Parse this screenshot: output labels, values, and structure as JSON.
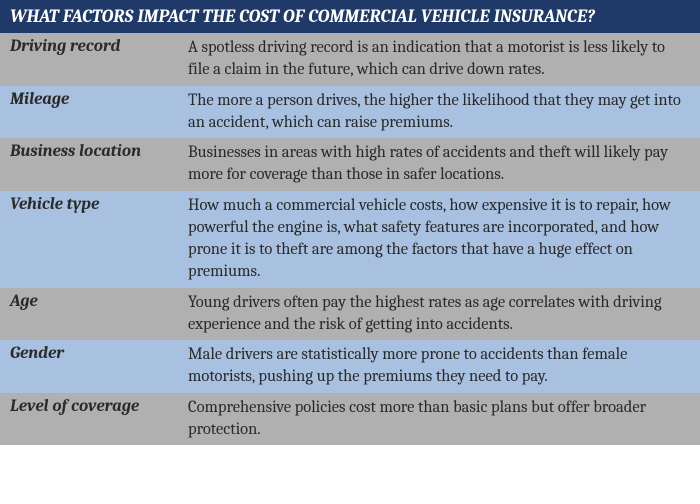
{
  "header": {
    "title": "WHAT FACTORS IMPACT THE COST OF COMMERCIAL VEHICLE INSURANCE?",
    "background_color": "#1f3a68",
    "text_color": "#ffffff"
  },
  "row_colors": {
    "odd": "#b0b0b0",
    "even": "#a9c1e0"
  },
  "text_color": "#2a2a2a",
  "rows": [
    {
      "factor": "Driving record",
      "desc": "A spotless driving record is an indication that a motorist is less likely to file a claim in the future, which can drive down rates."
    },
    {
      "factor": "Mileage",
      "desc": "The more a person drives, the higher the likelihood that they may get into an accident, which can raise premiums."
    },
    {
      "factor": "Business location",
      "desc": "Businesses in areas with high rates of accidents and theft will likely pay more for coverage than those in safer locations."
    },
    {
      "factor": "Vehicle type",
      "desc": "How much a commercial vehicle costs, how expensive it is to repair, how powerful the engine is, what safety features are incorporated, and how prone it is to theft are among the factors that have a huge effect on premiums."
    },
    {
      "factor": "Age",
      "desc": "Young drivers often pay the highest rates as age correlates with driving experience and the risk of getting into accidents."
    },
    {
      "factor": "Gender",
      "desc": "Male drivers are statistically more prone to accidents than female motorists, pushing up the premiums they need to pay."
    },
    {
      "factor": "Level of coverage",
      "desc": "Comprehensive policies cost more than basic plans but offer broader protection."
    }
  ]
}
